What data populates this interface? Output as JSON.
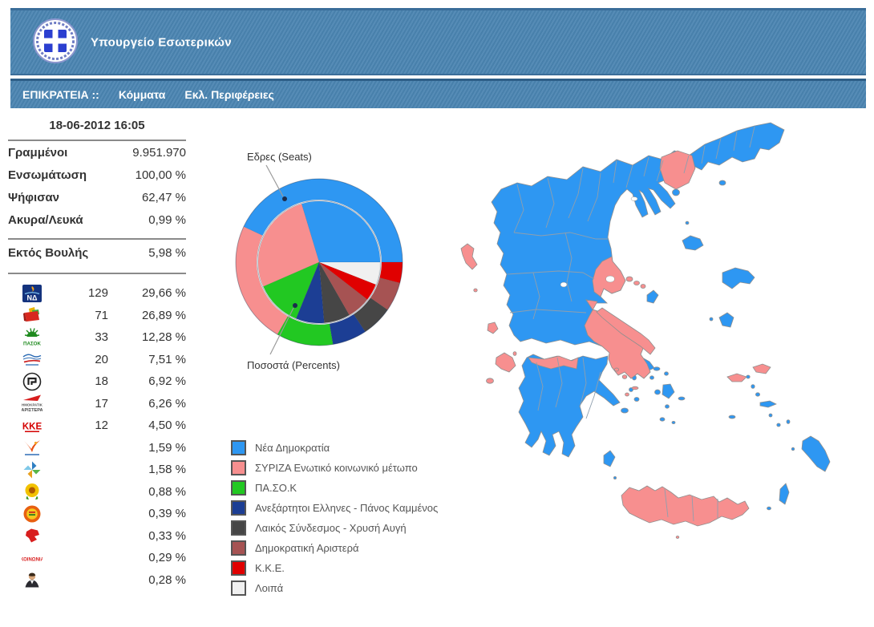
{
  "header": {
    "title": "Υπουργείο Εσωτερικών",
    "logo": "greek-coat-of-arms"
  },
  "nav": {
    "scope": "ΕΠΙΚΡΑΤΕΙΑ ::",
    "links": [
      "Κόμματα",
      "Εκλ. Περιφέρειες"
    ]
  },
  "timestamp": "18-06-2012 16:05",
  "stats": {
    "rows": [
      {
        "label": "Γραμμένοι",
        "value": "9.951.970"
      },
      {
        "label": "Ενσωμάτωση",
        "value": "100,00 %"
      },
      {
        "label": "Ψήφισαν",
        "value": "62,47 %"
      },
      {
        "label": "Ακυρα/Λευκά",
        "value": "0,99 %"
      }
    ],
    "outside": {
      "label": "Εκτός Βουλής",
      "value": "5,98 %"
    }
  },
  "party_rows": [
    {
      "icon": "nd-logo",
      "seats": "129",
      "percent": "29,66 %"
    },
    {
      "icon": "syriza-logo",
      "seats": "71",
      "percent": "26,89 %"
    },
    {
      "icon": "pasok-logo",
      "seats": "33",
      "percent": "12,28 %"
    },
    {
      "icon": "anel-logo",
      "seats": "20",
      "percent": "7,51 %"
    },
    {
      "icon": "xrysi-avgi-logo",
      "seats": "18",
      "percent": "6,92 %"
    },
    {
      "icon": "dimar-logo",
      "seats": "17",
      "percent": "6,26 %"
    },
    {
      "icon": "kke-logo",
      "seats": "12",
      "percent": "4,50 %"
    },
    {
      "icon": "firebird-logo",
      "seats": "",
      "percent": "1,59 %"
    },
    {
      "icon": "pinwheel-logo",
      "seats": "",
      "percent": "1,58 %"
    },
    {
      "icon": "sunflower-logo",
      "seats": "",
      "percent": "0,88 %"
    },
    {
      "icon": "round-emblem-logo",
      "seats": "",
      "percent": "0,39 %"
    },
    {
      "icon": "red-map-logo",
      "seats": "",
      "percent": "0,33 %"
    },
    {
      "icon": "koinonia-logo",
      "seats": "",
      "percent": "0,29 %"
    },
    {
      "icon": "portrait-logo",
      "seats": "",
      "percent": "0,28 %"
    }
  ],
  "chart_data": {
    "type": "pie",
    "variant": "nested-donut",
    "outer_ring": "seats",
    "inner_pie": "percents",
    "labels": {
      "outer": "Εδρες (Seats)",
      "inner": "Ποσοστά (Percents)"
    },
    "start_angle_deg": 0,
    "direction": "counterclockwise",
    "seats_total": 300,
    "series": [
      {
        "name": "Νέα Δημοκρατία",
        "color": "#2e97f2",
        "seats": 129,
        "percent": 29.66
      },
      {
        "name": "ΣΥΡΙΖΑ Ενωτικό κοινωνικό μέτωπο",
        "color": "#f78f8f",
        "seats": 71,
        "percent": 26.89
      },
      {
        "name": "ΠΑ.ΣΟ.Κ",
        "color": "#22c822",
        "seats": 33,
        "percent": 12.28
      },
      {
        "name": "Ανεξάρτητοι Ελληνες - Πάνος Καμμένος",
        "color": "#1c3e94",
        "seats": 20,
        "percent": 7.51
      },
      {
        "name": "Λαικός Σύνδεσμος - Χρυσή Αυγή",
        "color": "#464646",
        "seats": 18,
        "percent": 6.92
      },
      {
        "name": "Δημοκρατική Αριστερά",
        "color": "#a65353",
        "seats": 17,
        "percent": 6.26
      },
      {
        "name": "Κ.Κ.Ε.",
        "color": "#e00000",
        "seats": 12,
        "percent": 4.5
      },
      {
        "name": "Λοιπά",
        "color": "#f0f0f0",
        "seats": 0,
        "percent": 5.98
      }
    ],
    "legend_position": "bottom-left"
  },
  "map": {
    "description": "Χάρτης εκλογικών περιφερειών ανά πρώτο κόμμα",
    "nd_color": "#2e97f2",
    "syriza_color": "#f78f8f",
    "border_color": "#8f8f8f"
  }
}
